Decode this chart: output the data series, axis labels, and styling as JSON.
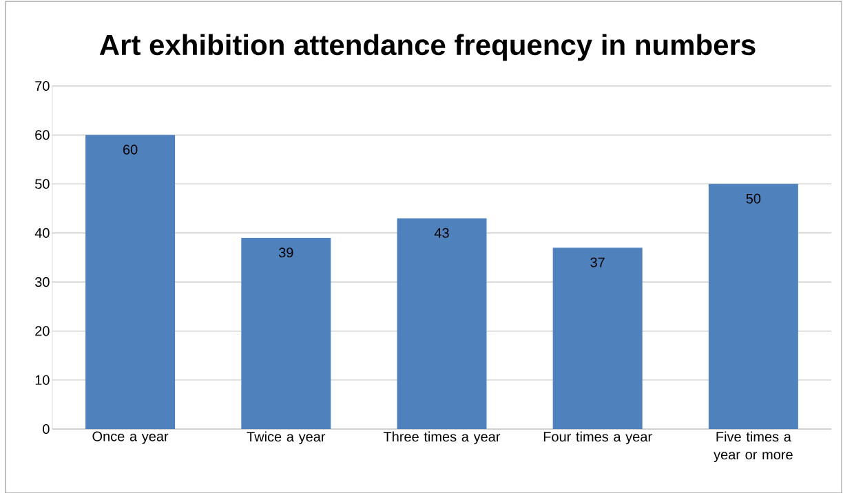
{
  "chart_data": {
    "type": "bar",
    "title": "Art exhibition attendance frequency in numbers",
    "categories": [
      "Once a year",
      "Twice a year",
      "Three times a year",
      "Four times a year",
      "Five times a year or more"
    ],
    "values": [
      60,
      39,
      43,
      37,
      50
    ],
    "color": "#4f81bd",
    "ylim": [
      0,
      70
    ],
    "yticks": [
      0,
      10,
      20,
      30,
      40,
      50,
      60,
      70
    ],
    "grid": "y",
    "data_labels": true
  }
}
